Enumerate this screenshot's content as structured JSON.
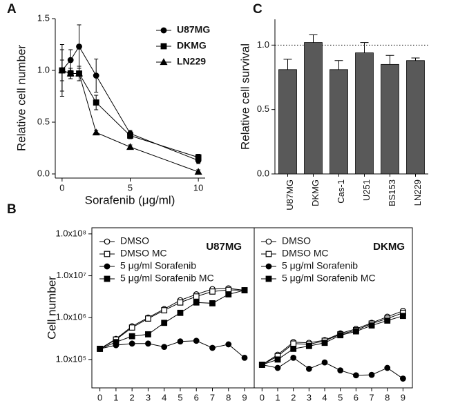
{
  "chart_data": [
    {
      "type": "line",
      "panel": "A",
      "xlabel": "Sorafenib (μg/ml)",
      "ylabel": "Relative cell number",
      "x": [
        0,
        0.625,
        1.25,
        2.5,
        5,
        10
      ],
      "xlim": [
        -0.5,
        10.5
      ],
      "xticks": [
        0,
        5,
        10
      ],
      "ylim": [
        -0.04,
        1.5
      ],
      "yticks": [
        {
          "value": 0,
          "label": "0.0"
        },
        {
          "value": 0.5,
          "label": "0.5"
        },
        {
          "value": 1,
          "label": "1.0"
        },
        {
          "value": 1.5,
          "label": "1.5"
        }
      ],
      "legend": "upper right",
      "box": false,
      "series": [
        {
          "name": "U87MG",
          "color": "#000000",
          "marker": "circle",
          "values": [
            1.0,
            1.1,
            1.23,
            0.95,
            0.39,
            0.13
          ],
          "errors": [
            0.25,
            0.1,
            0.21,
            0.16,
            0.03,
            0.03
          ]
        },
        {
          "name": "DKMG",
          "color": "#000000",
          "marker": "square",
          "values": [
            1.0,
            0.97,
            0.97,
            0.69,
            0.37,
            0.16
          ],
          "errors": [
            0.2,
            0.05,
            0.07,
            0.07,
            0.03,
            0.03
          ]
        },
        {
          "name": "LN229",
          "color": "#000000",
          "marker": "triangle",
          "values": [
            1.0,
            0.97,
            0.97,
            0.4,
            0.26,
            0.02
          ],
          "errors": [
            0.1,
            0.05,
            0.07,
            0.02,
            0.02,
            0.02
          ]
        }
      ]
    },
    {
      "type": "bar",
      "panel": "C",
      "ylabel": "Relative cell survival",
      "categories": [
        "U87MG",
        "DKMG",
        "Cas-1",
        "U251",
        "BS153",
        "LN229"
      ],
      "values": [
        0.81,
        1.02,
        0.81,
        0.94,
        0.85,
        0.88
      ],
      "errors": [
        0.08,
        0.06,
        0.07,
        0.08,
        0.07,
        0.02
      ],
      "color": "#595959",
      "reference_line": 1,
      "ylim": [
        0,
        1.2
      ],
      "yticks": [
        {
          "value": 0,
          "label": "0.0"
        },
        {
          "value": 0.5,
          "label": "0.5"
        },
        {
          "value": 1,
          "label": "1.0"
        }
      ],
      "box": false
    },
    {
      "type": "line",
      "panel": "B",
      "ylabel": "Cell number",
      "annotation": "U87MG",
      "log_y": true,
      "box": true,
      "legend": "upper left",
      "x": [
        0,
        1,
        2,
        3,
        4,
        5,
        6,
        7,
        8,
        9
      ],
      "xlim": [
        -0.5,
        9.6
      ],
      "xticks": [
        0,
        1,
        2,
        3,
        4,
        5,
        6,
        7,
        8,
        9
      ],
      "ylim": [
        21000,
        140000000
      ],
      "yticks": [
        {
          "value": 100000,
          "label": "1.0x10⁵"
        },
        {
          "value": 1000000,
          "label": "1.0x10⁶"
        },
        {
          "value": 10000000,
          "label": "1.0x10⁷"
        },
        {
          "value": 100000000,
          "label": "1.0x10⁸"
        }
      ],
      "series": [
        {
          "name": "DMSO",
          "color": "#000000",
          "marker": "circle-open",
          "values": [
            180000,
            310000,
            620000,
            1000000,
            1600000,
            2600000,
            3600000,
            4800000,
            5000000,
            4500000
          ]
        },
        {
          "name": "DMSO MC",
          "color": "#000000",
          "marker": "square-open",
          "values": [
            180000,
            300000,
            580000,
            950000,
            1500000,
            2300000,
            3200000,
            4200000,
            4600000,
            4500000
          ]
        },
        {
          "name": "5 μg/ml Sorafenib",
          "color": "#000000",
          "marker": "circle",
          "values": [
            180000,
            220000,
            240000,
            240000,
            200000,
            270000,
            280000,
            190000,
            230000,
            110000
          ]
        },
        {
          "name": "5 μg/ml Sorafenib MC",
          "color": "#000000",
          "marker": "square",
          "values": [
            180000,
            260000,
            360000,
            400000,
            750000,
            1300000,
            2300000,
            2200000,
            3600000,
            4500000
          ]
        }
      ]
    },
    {
      "type": "line",
      "annotation": "DKMG",
      "log_y": true,
      "box": true,
      "legend": "upper left",
      "x": [
        0,
        1,
        2,
        3,
        4,
        5,
        6,
        7,
        8,
        9
      ],
      "xlim": [
        -0.5,
        9.6
      ],
      "xticks": [
        0,
        1,
        2,
        3,
        4,
        5,
        6,
        7,
        8,
        9
      ],
      "ylim": [
        21000,
        140000000
      ],
      "series": [
        {
          "name": "DMSO",
          "color": "#000000",
          "marker": "circle-open",
          "values": [
            75000,
            130000,
            260000,
            250000,
            290000,
            420000,
            540000,
            750000,
            1050000,
            1450000
          ]
        },
        {
          "name": "DMSO MC",
          "color": "#000000",
          "marker": "square-open",
          "values": [
            75000,
            120000,
            240000,
            230000,
            280000,
            400000,
            500000,
            720000,
            950000,
            1300000
          ]
        },
        {
          "name": "5 μg/ml Sorafenib",
          "color": "#000000",
          "marker": "circle",
          "values": [
            75000,
            63000,
            110000,
            60000,
            85000,
            55000,
            42000,
            43000,
            63000,
            35000
          ]
        },
        {
          "name": "5 μg/ml Sorafenib MC",
          "color": "#000000",
          "marker": "square",
          "values": [
            75000,
            100000,
            180000,
            210000,
            250000,
            380000,
            470000,
            650000,
            850000,
            1100000
          ]
        }
      ]
    }
  ]
}
